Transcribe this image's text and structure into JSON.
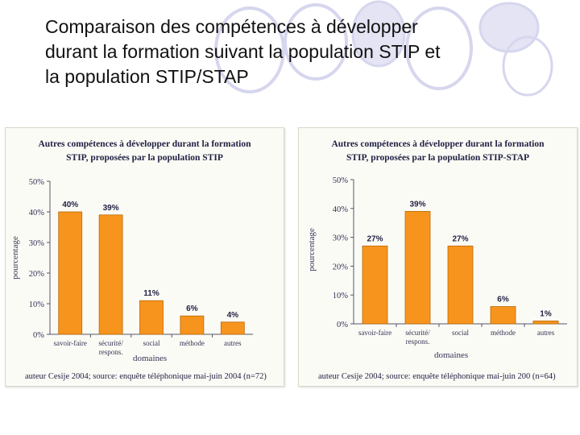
{
  "slide": {
    "title_lines": [
      "Comparaison des compétences à développer",
      "durant la formation suivant la population STIP et",
      "la population STIP/STAP"
    ]
  },
  "colors": {
    "bar": "#f7941d",
    "bar_edge": "#b96a06",
    "ring": "#d6d6ee",
    "ring_fill": "#e4e4f4",
    "text": "#222244"
  },
  "chart_data": [
    {
      "type": "bar",
      "title_lines": [
        "Autres compétences à développer durant la formation",
        "STIP, proposées par la population STIP"
      ],
      "categories": [
        [
          "savoir-faire"
        ],
        [
          "sécurité/",
          "respons."
        ],
        [
          "social"
        ],
        [
          "méthode"
        ],
        [
          "autres"
        ]
      ],
      "values": [
        40,
        39,
        11,
        6,
        4
      ],
      "value_labels": [
        "40%",
        "39%",
        "11%",
        "6%",
        "4%"
      ],
      "ylim": [
        0,
        50
      ],
      "yticks": [
        0,
        10,
        20,
        30,
        40,
        50
      ],
      "ytick_labels": [
        "0%",
        "10%",
        "20%",
        "30%",
        "40%",
        "50%"
      ],
      "ylabel": "pourcentage",
      "xlabel": "domaines",
      "footer": "auteur Cesije 2004; source: enquête téléphonique mai-juin 2004 (n=72)"
    },
    {
      "type": "bar",
      "title_lines": [
        "Autres compétences à développer durant la formation",
        "STIP, proposées par la population STIP-STAP"
      ],
      "categories": [
        [
          "savoir-faire"
        ],
        [
          "sécurité/",
          "respons."
        ],
        [
          "social"
        ],
        [
          "méthode"
        ],
        [
          "autres"
        ]
      ],
      "values": [
        27,
        39,
        27,
        6,
        1
      ],
      "value_labels": [
        "27%",
        "39%",
        "27%",
        "6%",
        "1%"
      ],
      "ylim": [
        0,
        50
      ],
      "yticks": [
        0,
        10,
        20,
        30,
        40,
        50
      ],
      "ytick_labels": [
        "0%",
        "10%",
        "20%",
        "30%",
        "40%",
        "50%"
      ],
      "ylabel": "pourcentage",
      "xlabel": "domaines",
      "footer": "auteur Cesije 2004; source: enquête téléphonique mai-juin 200 (n=64)"
    }
  ]
}
